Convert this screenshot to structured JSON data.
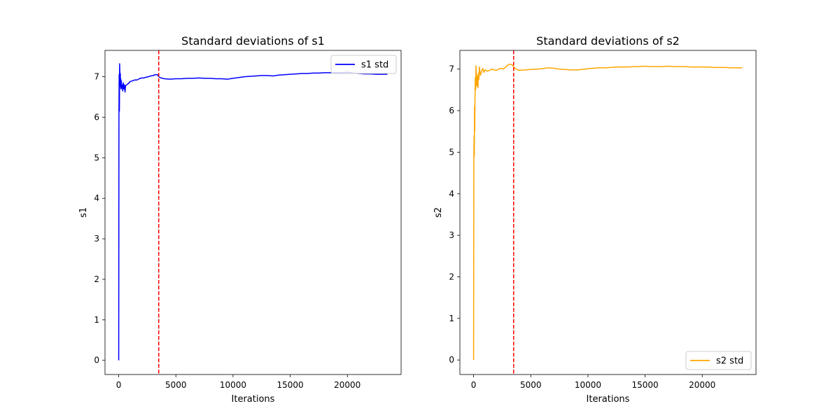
{
  "chart_data": [
    {
      "type": "line",
      "title": "Standard deviations of s1",
      "xlabel": "Iterations",
      "ylabel": "s1",
      "xlim": [
        -1200,
        24700
      ],
      "ylim": [
        -0.35,
        7.65
      ],
      "xticks": [
        0,
        5000,
        10000,
        15000,
        20000
      ],
      "yticks": [
        0,
        1,
        2,
        3,
        4,
        5,
        6,
        7
      ],
      "grid": false,
      "legend_position": "upper right",
      "vline": {
        "x": 3500,
        "color": "#ff0000",
        "style": "dashed"
      },
      "series": [
        {
          "name": "s1 std",
          "color": "#0000ff",
          "x": [
            0,
            20,
            40,
            60,
            80,
            100,
            120,
            140,
            160,
            180,
            200,
            230,
            260,
            300,
            350,
            400,
            450,
            500,
            550,
            600,
            700,
            800,
            900,
            1000,
            1200,
            1400,
            1600,
            1800,
            2000,
            2200,
            2400,
            2600,
            2800,
            3000,
            3200,
            3400,
            3500,
            3700,
            4000,
            4500,
            5000,
            5500,
            6000,
            6500,
            7000,
            7500,
            8000,
            8500,
            9000,
            9500,
            10000,
            10500,
            11000,
            11500,
            12000,
            12500,
            13000,
            13500,
            14000,
            14500,
            15000,
            15500,
            16000,
            16500,
            17000,
            17500,
            18000,
            18500,
            19000,
            19500,
            20000,
            20500,
            21000,
            21500,
            22000,
            22500,
            23000,
            23500
          ],
          "values": [
            0.0,
            6.2,
            7.05,
            6.15,
            7.32,
            7.1,
            6.85,
            7.08,
            6.75,
            6.95,
            6.7,
            6.9,
            6.72,
            6.8,
            6.65,
            6.85,
            6.7,
            6.8,
            6.62,
            6.78,
            6.8,
            6.82,
            6.85,
            6.88,
            6.9,
            6.92,
            6.92,
            6.95,
            6.97,
            6.97,
            6.99,
            7.0,
            7.02,
            7.03,
            7.05,
            7.05,
            7.0,
            6.97,
            6.95,
            6.94,
            6.95,
            6.95,
            6.96,
            6.96,
            6.97,
            6.96,
            6.96,
            6.95,
            6.95,
            6.94,
            6.96,
            6.98,
            7.0,
            7.01,
            7.02,
            7.03,
            7.03,
            7.02,
            7.04,
            7.05,
            7.06,
            7.07,
            7.08,
            7.08,
            7.09,
            7.09,
            7.1,
            7.1,
            7.1,
            7.1,
            7.11,
            7.09,
            7.08,
            7.07,
            7.07,
            7.06,
            7.06,
            7.06
          ]
        }
      ]
    },
    {
      "type": "line",
      "title": "Standard deviations of s2",
      "xlabel": "Iterations",
      "ylabel": "s2",
      "xlim": [
        -1200,
        24700
      ],
      "ylim": [
        -0.35,
        7.45
      ],
      "xticks": [
        0,
        5000,
        10000,
        15000,
        20000
      ],
      "yticks": [
        0,
        1,
        2,
        3,
        4,
        5,
        6,
        7
      ],
      "grid": false,
      "legend_position": "lower right",
      "vline": {
        "x": 3500,
        "color": "#ff0000",
        "style": "dashed"
      },
      "series": [
        {
          "name": "s2 std",
          "color": "#ffa500",
          "x": [
            0,
            20,
            40,
            60,
            80,
            100,
            120,
            150,
            180,
            210,
            240,
            270,
            300,
            340,
            380,
            420,
            460,
            500,
            550,
            600,
            700,
            800,
            900,
            1000,
            1200,
            1400,
            1600,
            1800,
            2000,
            2200,
            2400,
            2600,
            2800,
            3000,
            3200,
            3400,
            3500,
            3700,
            4000,
            4500,
            5000,
            5500,
            6000,
            6500,
            7000,
            7500,
            8000,
            8500,
            9000,
            9500,
            10000,
            10500,
            11000,
            11500,
            12000,
            12500,
            13000,
            13500,
            14000,
            14500,
            15000,
            15500,
            16000,
            16500,
            17000,
            17500,
            18000,
            18500,
            19000,
            19500,
            20000,
            20500,
            21000,
            21500,
            22000,
            22500,
            23000,
            23500
          ],
          "values": [
            0.0,
            4.8,
            5.4,
            4.9,
            6.1,
            5.5,
            6.3,
            6.8,
            6.5,
            7.08,
            6.9,
            6.6,
            6.85,
            6.7,
            6.55,
            6.9,
            6.75,
            7.05,
            6.95,
            6.85,
            6.95,
            7.02,
            6.92,
            6.98,
            6.95,
            6.97,
            7.0,
            6.98,
            6.97,
            7.0,
            7.02,
            7.0,
            7.05,
            7.1,
            7.12,
            7.1,
            7.05,
            7.0,
            6.97,
            6.98,
            6.99,
            7.0,
            7.01,
            7.03,
            7.02,
            7.0,
            6.99,
            6.98,
            6.98,
            6.99,
            7.01,
            7.02,
            7.03,
            7.03,
            7.04,
            7.05,
            7.05,
            7.05,
            7.06,
            7.06,
            7.07,
            7.06,
            7.06,
            7.06,
            7.07,
            7.06,
            7.06,
            7.06,
            7.05,
            7.05,
            7.05,
            7.05,
            7.04,
            7.04,
            7.04,
            7.03,
            7.03,
            7.03
          ]
        }
      ]
    }
  ]
}
